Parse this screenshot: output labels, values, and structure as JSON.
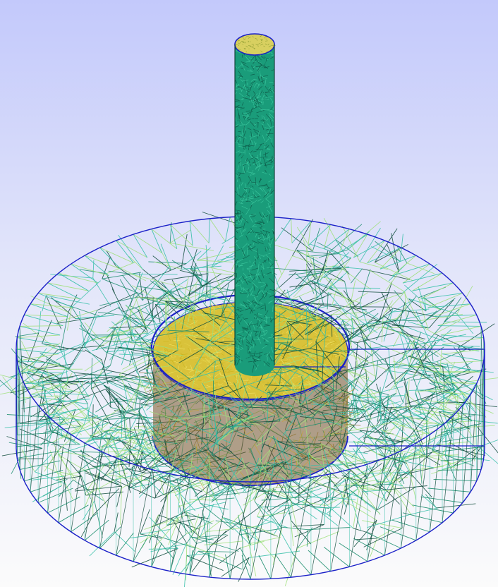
{
  "viewport": {
    "background_top": "#c3c9fb",
    "background_bottom": "#fbfbfb"
  },
  "scene": {
    "type": "3d-tetrahedral-mesh-wireframe",
    "objects": [
      {
        "name": "outer-cylinder-domain",
        "edge_color": "#1a20c8",
        "mesh_colors": [
          "#0d4a3a",
          "#1b8d6d",
          "#36c0a8",
          "#9fe07a"
        ]
      },
      {
        "name": "inner-cylinder-region",
        "edge_color": "#1a20c8",
        "mesh_colors": [
          "#c9b21c",
          "#e3d24a",
          "#f0e46a"
        ]
      },
      {
        "name": "vertical-pillar",
        "edge_color": "#1a20c8",
        "mesh_colors": [
          "#0d5a48",
          "#1a9c7a",
          "#3cc89e"
        ]
      }
    ]
  }
}
